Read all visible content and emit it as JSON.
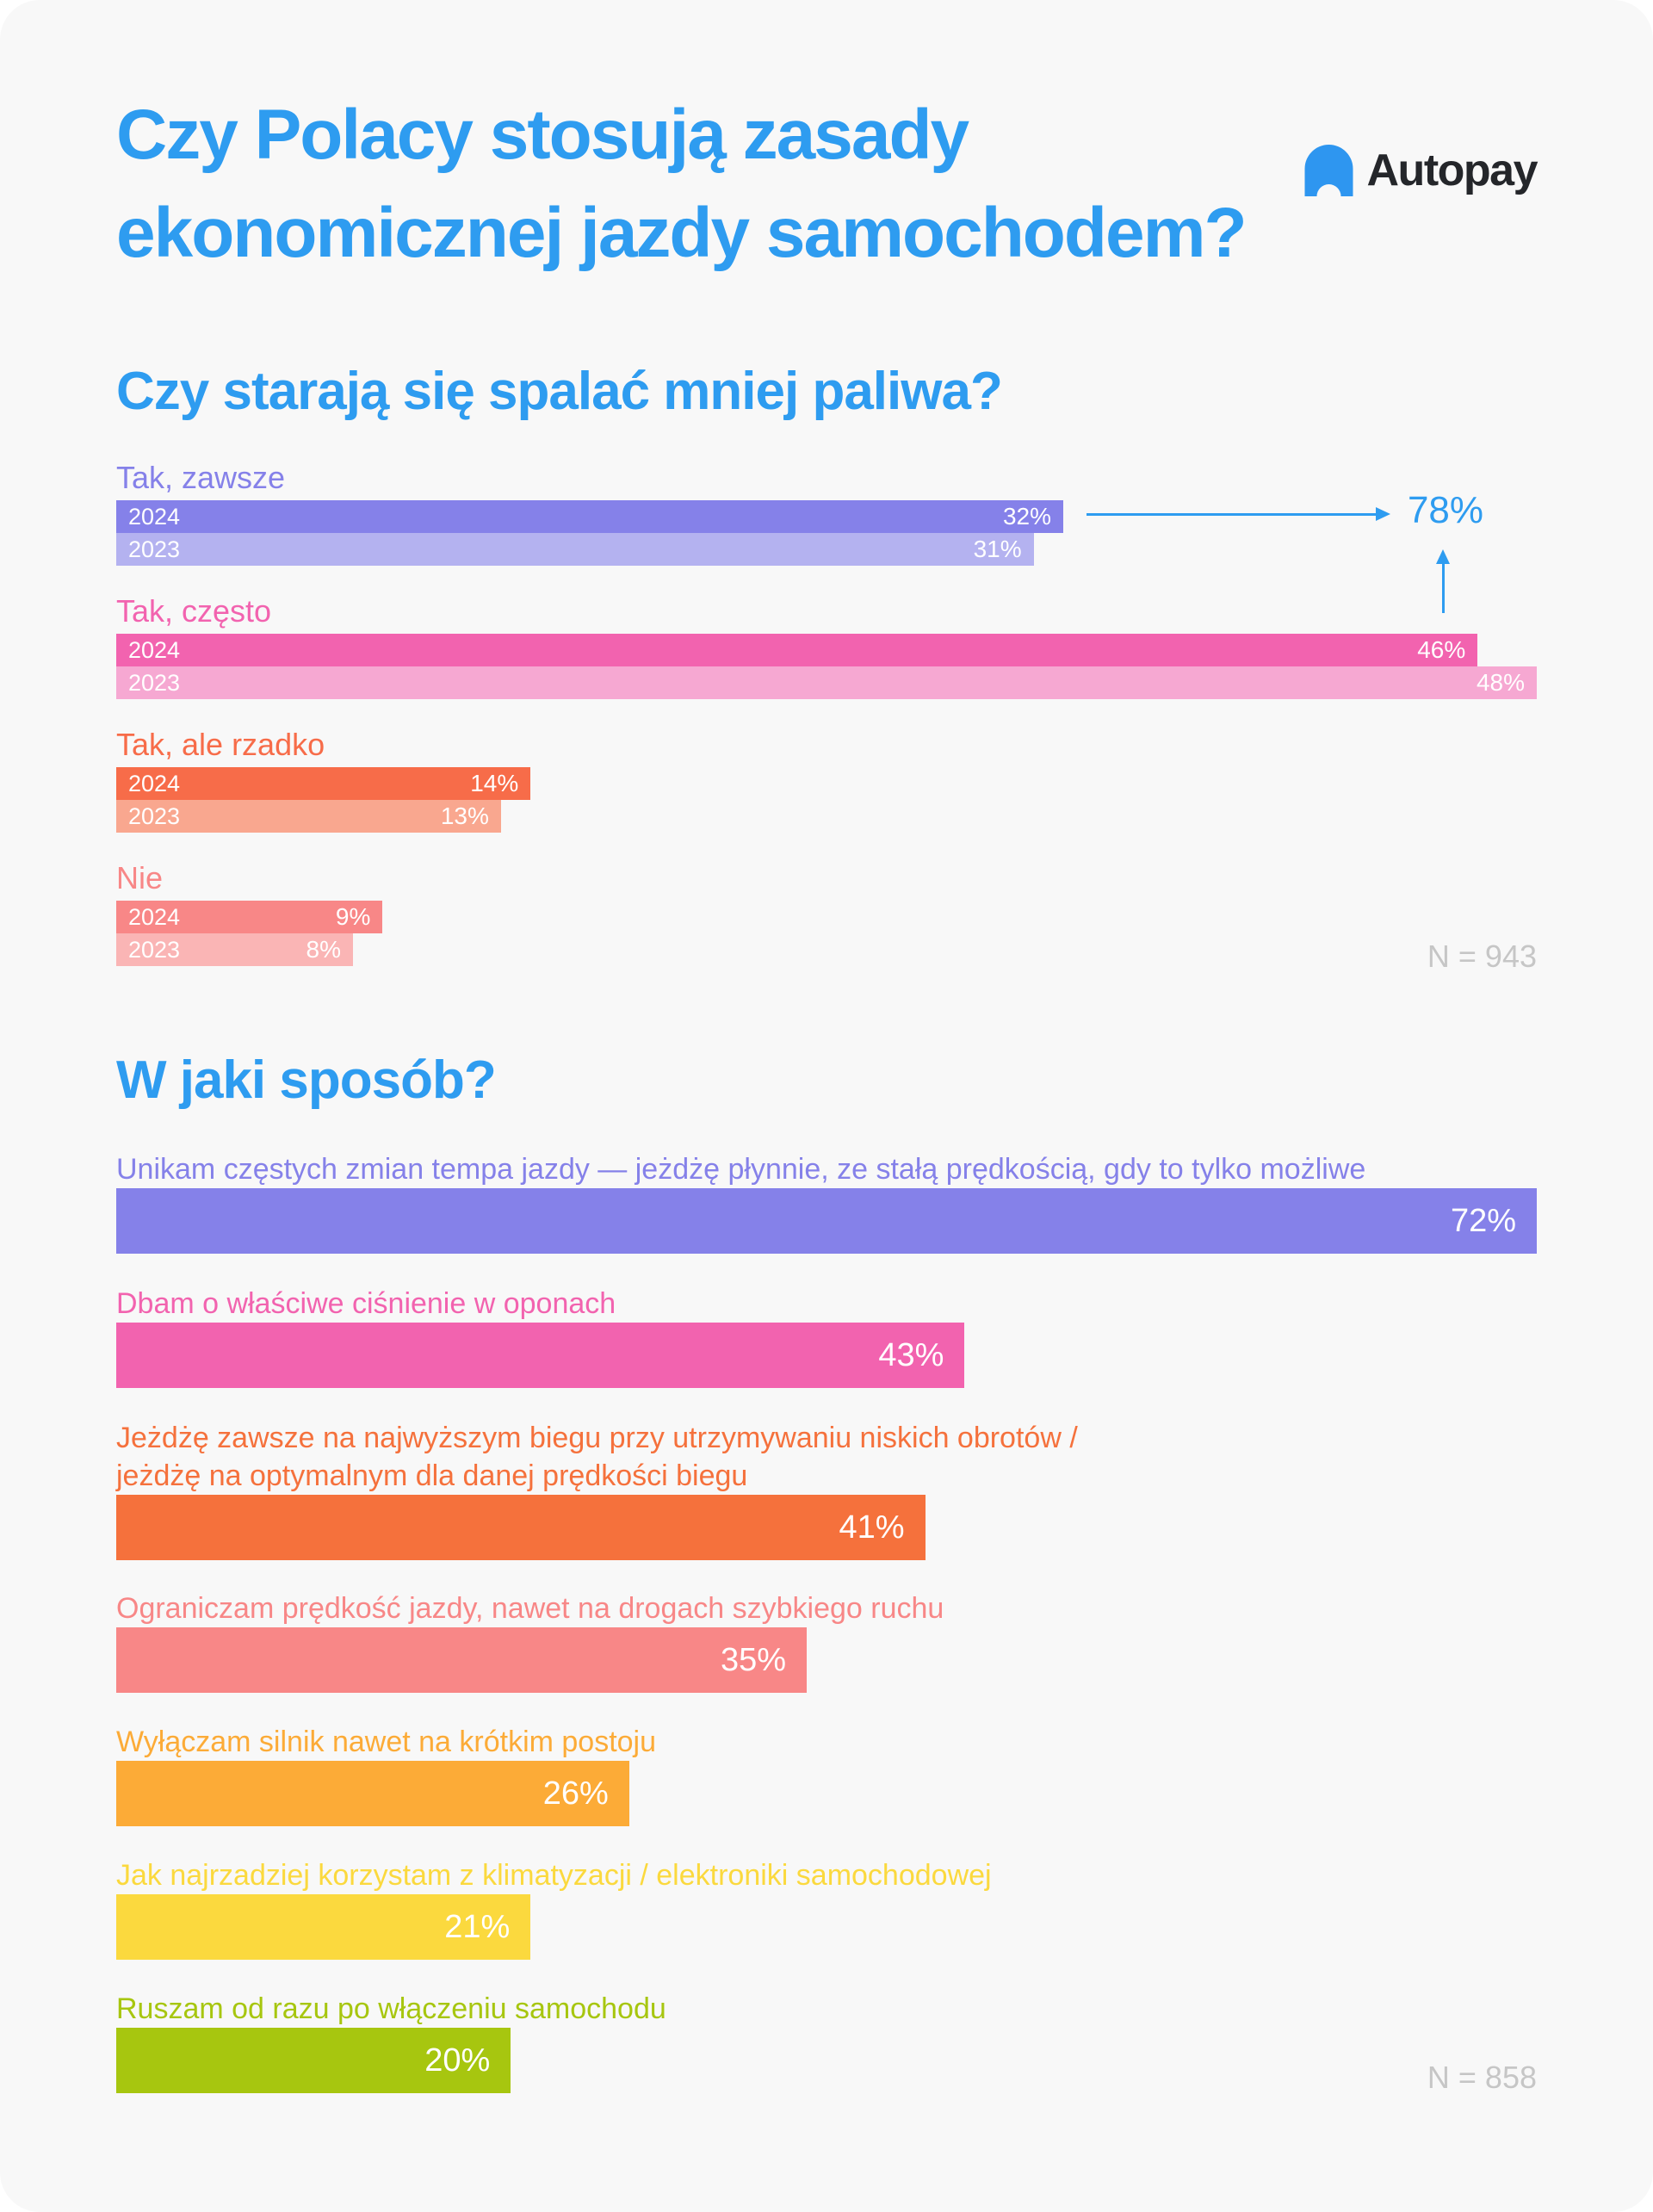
{
  "page": {
    "title_lines": [
      "Czy Polacy stosują zasady",
      "ekonomicznej jazdy samochodem?"
    ],
    "logo": {
      "text": "Autopay"
    },
    "colors": {
      "accent_blue": "#2e9cf0",
      "background": "#f8f8f8",
      "sample_gray": "#c6c6c6",
      "logo_dark": "#24262a",
      "logo_blue": "#2e96f0"
    }
  },
  "chart_data": [
    {
      "type": "bar",
      "title": "Czy starają się spalać mniej paliwa?",
      "sample_size": "N = 943",
      "unit": "%",
      "xlim": [
        0,
        48
      ],
      "legend": [
        "2024",
        "2023"
      ],
      "annotation": {
        "text": "78%"
      },
      "groups": [
        {
          "label": "Tak, zawsze",
          "color": "#8581e9",
          "color_light": "#b4b2f0",
          "series": [
            {
              "name": "2024",
              "value": 32,
              "display": "32%"
            },
            {
              "name": "2023",
              "value": 31,
              "display": "31%"
            }
          ]
        },
        {
          "label": "Tak, często",
          "color": "#f263af",
          "color_light": "#f6a8d2",
          "series": [
            {
              "name": "2024",
              "value": 46,
              "display": "46%"
            },
            {
              "name": "2023",
              "value": 48,
              "display": "48%"
            }
          ]
        },
        {
          "label": "Tak, ale rzadko",
          "color": "#f76c49",
          "color_light": "#f9a78f",
          "series": [
            {
              "name": "2024",
              "value": 14,
              "display": "14%"
            },
            {
              "name": "2023",
              "value": 13,
              "display": "13%"
            }
          ]
        },
        {
          "label": "Nie",
          "color": "#f88787",
          "color_light": "#fab5b5",
          "series": [
            {
              "name": "2024",
              "value": 9,
              "display": "9%"
            },
            {
              "name": "2023",
              "value": 8,
              "display": "8%"
            }
          ]
        }
      ]
    },
    {
      "type": "bar",
      "title": "W jaki sposób?",
      "sample_size": "N = 858",
      "unit": "%",
      "xlim": [
        0,
        72
      ],
      "items": [
        {
          "label": "Unikam częstych zmian tempa jazdy — jeżdżę płynnie, ze stałą prędkością, gdy to tylko możliwe",
          "lines": [
            "Unikam częstych zmian tempa jazdy — jeżdżę płynnie, ze stałą prędkością, gdy to tylko możliwe",
            ""
          ],
          "value": 72,
          "display": "72%",
          "color": "#8581e9"
        },
        {
          "label": "Dbam o właściwe ciśnienie w oponach",
          "lines": [
            "Dbam o właściwe ciśnienie w oponach",
            ""
          ],
          "value": 43,
          "display": "43%",
          "color": "#f263af"
        },
        {
          "label": "Jeżdżę zawsze na najwyższym biegu przy utrzymywaniu niskich obrotów / jeżdżę na optymalnym dla danej prędkości biegu",
          "lines": [
            "Jeżdżę zawsze na najwyższym biegu przy utrzymywaniu niskich obrotów /",
            "jeżdżę na optymalnym dla danej prędkości biegu"
          ],
          "value": 41,
          "display": "41%",
          "color": "#f5713c"
        },
        {
          "label": "Ograniczam prędkość jazdy, nawet na drogach szybkiego ruchu",
          "lines": [
            "Ograniczam prędkość jazdy, nawet na drogach szybkiego ruchu",
            ""
          ],
          "value": 35,
          "display": "35%",
          "color": "#f88787"
        },
        {
          "label": "Wyłączam silnik nawet na krótkim postoju",
          "lines": [
            "Wyłączam silnik nawet na krótkim postoju",
            ""
          ],
          "value": 26,
          "display": "26%",
          "color": "#fcab37"
        },
        {
          "label": "Jak najrzadziej korzystam z klimatyzacji / elektroniki samochodowej",
          "lines": [
            "Jak najrzadziej korzystam z klimatyzacji / elektroniki samochodowej",
            ""
          ],
          "value": 21,
          "display": "21%",
          "color": "#fbd93e"
        },
        {
          "label": "Ruszam od razu po włączeniu samochodu",
          "lines": [
            "Ruszam od razu po włączeniu samochodu",
            ""
          ],
          "value": 20,
          "display": "20%",
          "color": "#a7c60f"
        }
      ]
    }
  ]
}
